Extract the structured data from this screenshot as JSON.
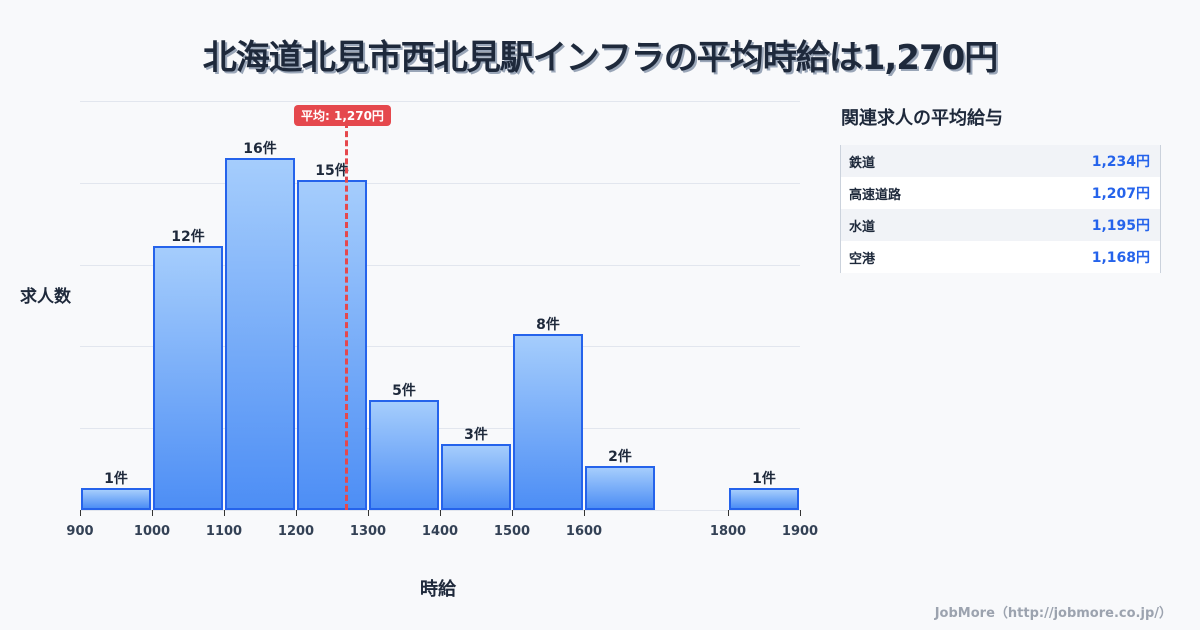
{
  "title": "北海道北見市西北見駅インフラの平均時給は1,270円",
  "chart_data": {
    "type": "bar",
    "title": "北海道北見市西北見駅インフラの平均時給は1,270円",
    "xlabel": "時給",
    "ylabel": "求人数",
    "bins": [
      {
        "range": [
          900,
          1000
        ],
        "count": 1,
        "label": "1件"
      },
      {
        "range": [
          1000,
          1100
        ],
        "count": 12,
        "label": "12件"
      },
      {
        "range": [
          1100,
          1200
        ],
        "count": 16,
        "label": "16件"
      },
      {
        "range": [
          1200,
          1300
        ],
        "count": 15,
        "label": "15件"
      },
      {
        "range": [
          1300,
          1400
        ],
        "count": 5,
        "label": "5件"
      },
      {
        "range": [
          1400,
          1500
        ],
        "count": 3,
        "label": "3件"
      },
      {
        "range": [
          1500,
          1600
        ],
        "count": 8,
        "label": "8件"
      },
      {
        "range": [
          1600,
          1700
        ],
        "count": 2,
        "label": "2件"
      },
      {
        "range": [
          1800,
          1900
        ],
        "count": 1,
        "label": "1件"
      }
    ],
    "x_ticks": [
      "900",
      "1000",
      "1100",
      "1200",
      "1300",
      "1400",
      "1500",
      "1600",
      "1800",
      "1900"
    ],
    "xlim": [
      900,
      1900
    ],
    "ylim": [
      0,
      18.6
    ],
    "grid": true,
    "average": {
      "value": 1270,
      "label": "平均: 1,270円",
      "color": "#e5484d"
    },
    "bar_color": "#2563eb"
  },
  "sidebar": {
    "title": "関連求人の平均給与",
    "rows": [
      {
        "name": "鉄道",
        "value": "1,234円"
      },
      {
        "name": "高速道路",
        "value": "1,207円"
      },
      {
        "name": "水道",
        "value": "1,195円"
      },
      {
        "name": "空港",
        "value": "1,168円"
      }
    ]
  },
  "footer": "JobMore（http://jobmore.co.jp/）"
}
